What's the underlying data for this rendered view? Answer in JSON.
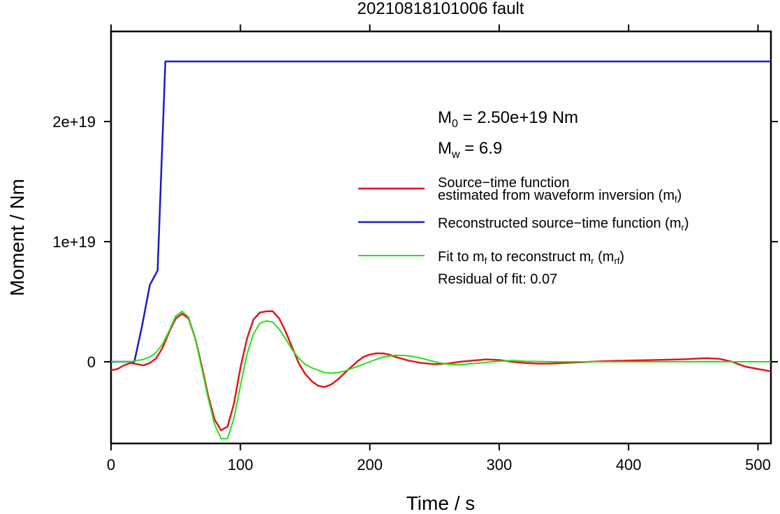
{
  "chart_data": {
    "type": "line",
    "title": "20210818101006 fault",
    "xlabel": "Time / s",
    "ylabel": "Moment / Nm",
    "xlim": [
      0,
      510
    ],
    "ylim": [
      -6.8e+18,
      2.75e+19
    ],
    "x_ticks": [
      0,
      100,
      200,
      300,
      400,
      500
    ],
    "x_tick_labels": [
      "0",
      "100",
      "200",
      "300",
      "400",
      "500"
    ],
    "y_ticks": [
      0,
      1e+19,
      2e+19
    ],
    "y_tick_labels": [
      "0",
      "1e+19",
      "2e+19"
    ],
    "grid": false,
    "legend_position": "right",
    "annotations": {
      "m0_symbol": "M",
      "m0_sub": "0",
      "m0_value": " = 2.50e+19 Nm",
      "mw_symbol": "M",
      "mw_sub": "w",
      "mw_value": " = 6.9",
      "residual": "Residual of fit: 0.07"
    },
    "legend": {
      "red_line1": "Source−time function",
      "red_line2_pre": "estimated from waveform inversion (m",
      "red_line2_sub": "f",
      "red_line2_post": ")",
      "blue_pre": "Reconstructed source−time function (m",
      "blue_sub": "r",
      "blue_post": ")",
      "green_pre1": "Fit to m",
      "green_sub1": "f",
      "green_mid": " to reconstruct m",
      "green_sub2": "r",
      "green_mid2": " (m",
      "green_sub3": "rf",
      "green_post": ")"
    },
    "series": [
      {
        "name": "Source−time function estimated from waveform inversion (mf)",
        "color": "#e8141c",
        "x": [
          0,
          5,
          10,
          15,
          20,
          25,
          30,
          35,
          40,
          45,
          50,
          55,
          60,
          65,
          70,
          75,
          80,
          85,
          90,
          95,
          100,
          105,
          110,
          115,
          120,
          125,
          130,
          135,
          140,
          145,
          150,
          155,
          160,
          165,
          170,
          175,
          180,
          185,
          190,
          195,
          200,
          205,
          210,
          215,
          220,
          230,
          240,
          250,
          260,
          270,
          280,
          290,
          300,
          310,
          320,
          330,
          340,
          350,
          360,
          380,
          400,
          420,
          440,
          460,
          470,
          480,
          490,
          500,
          510
        ],
        "y": [
          -7e+17,
          -6e+17,
          -3e+17,
          -1e+17,
          -2e+17,
          -3e+17,
          -1e+17,
          3e+17,
          1.2e+18,
          2.5e+18,
          3.6e+18,
          4e+18,
          3.6e+18,
          2e+18,
          -3e+17,
          -2.8e+18,
          -4.8e+18,
          -5.7e+18,
          -5.4e+18,
          -3.5e+18,
          -5e+17,
          1.9e+18,
          3.5e+18,
          4.1e+18,
          4.2e+18,
          4.2e+18,
          3.6e+18,
          2.5e+18,
          1.2e+18,
          -1e+17,
          -1e+18,
          -1.6e+18,
          -2e+18,
          -2.1e+18,
          -1.9e+18,
          -1.5e+18,
          -1e+18,
          -5e+17,
          0,
          4e+17,
          6e+17,
          7e+17,
          7e+17,
          6e+17,
          4e+17,
          1e+17,
          -1e+17,
          -2e+17,
          -1.5e+17,
          0,
          1e+17,
          2e+17,
          1.5e+17,
          0,
          -1e+17,
          -1.5e+17,
          -1.5e+17,
          -1e+17,
          -5e+16,
          5e+16,
          1e+17,
          1.5e+17,
          2e+17,
          3e+17,
          2.5e+17,
          0,
          -4e+17,
          -6e+17,
          -8e+17
        ]
      },
      {
        "name": "Reconstructed source−time function (mr)",
        "color": "#1a1ac8",
        "x": [
          0,
          18,
          24,
          30,
          36,
          42,
          510
        ],
        "y": [
          0,
          0,
          3e+18,
          6.4e+18,
          7.6e+18,
          2.5e+19,
          2.5e+19
        ]
      },
      {
        "name": "Fit to mf to reconstruct mr (mrf)",
        "color": "#22e21a",
        "x": [
          0,
          10,
          15,
          20,
          25,
          30,
          35,
          40,
          45,
          50,
          55,
          60,
          65,
          70,
          75,
          80,
          85,
          90,
          95,
          100,
          105,
          110,
          115,
          120,
          125,
          130,
          135,
          140,
          145,
          150,
          155,
          160,
          165,
          170,
          175,
          180,
          185,
          190,
          200,
          210,
          220,
          230,
          240,
          250,
          260,
          270,
          280,
          290,
          300,
          310,
          320,
          340,
          360,
          380,
          400,
          450,
          480,
          510
        ],
        "y": [
          0,
          0,
          0,
          1e+17,
          2e+17,
          4e+17,
          8e+17,
          1.5e+18,
          2.6e+18,
          3.8e+18,
          4.2e+18,
          3.7e+18,
          2e+18,
          -5e+17,
          -3e+18,
          -5.2e+18,
          -6.4e+18,
          -6.4e+18,
          -4.7e+18,
          -2e+18,
          6e+17,
          2.3e+18,
          3.2e+18,
          3.4e+18,
          3.3e+18,
          2.7e+18,
          1.9e+18,
          1e+18,
          3e+17,
          -2e+17,
          -5e+17,
          -7e+17,
          -9e+17,
          -9.5e+17,
          -9e+17,
          -8e+17,
          -6e+17,
          -4e+17,
          0,
          4e+17,
          5.5e+17,
          5e+17,
          3e+17,
          0,
          -2e+17,
          -2.5e+17,
          -1.5e+17,
          -5e+16,
          5e+16,
          1e+17,
          5e+16,
          0,
          0,
          0,
          0,
          0,
          0,
          0
        ]
      }
    ]
  }
}
